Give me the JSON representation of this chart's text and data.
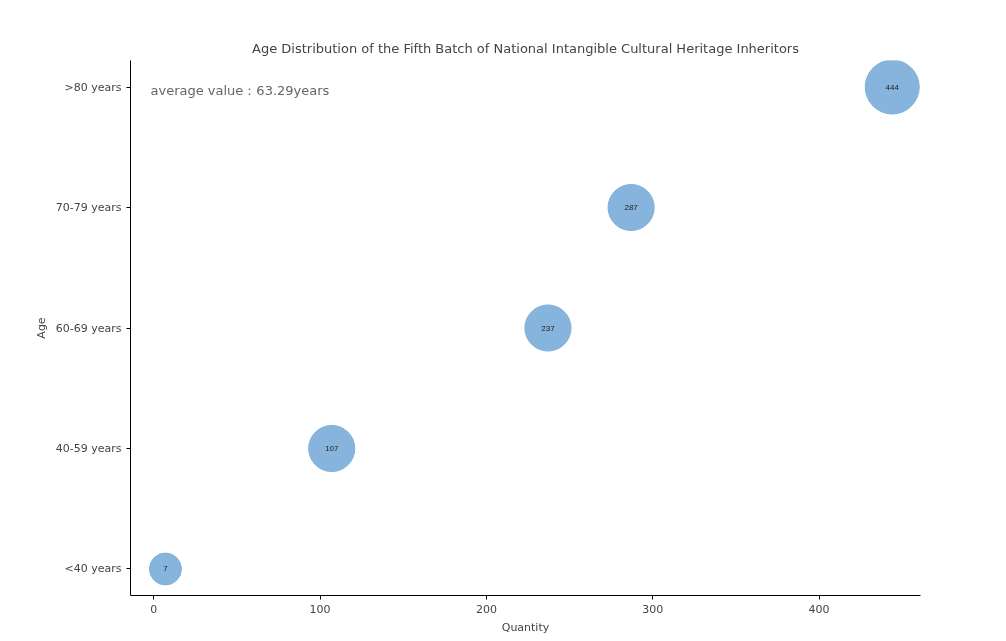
{
  "chart_data": {
    "type": "bubble",
    "orientation": "horizontal",
    "title": "Age Distribution of the Fifth Batch of National Intangible Cultural Heritage Inheritors",
    "xlabel": "Quantity",
    "ylabel": "Age",
    "categories": [
      ">80 years",
      "70-79 years",
      "60-69 years",
      "40-59 years",
      "<40 years"
    ],
    "values": [
      444,
      287,
      237,
      107,
      7
    ],
    "sizes": [
      1,
      0.73,
      0.73,
      0.73,
      0.35
    ],
    "color": "#7fb0da",
    "xlim": [
      -14,
      461
    ],
    "xticks": [
      0,
      100,
      200,
      300,
      400
    ],
    "data_labels": true,
    "grid": false,
    "annotations": [
      "average value：63.29years"
    ]
  }
}
